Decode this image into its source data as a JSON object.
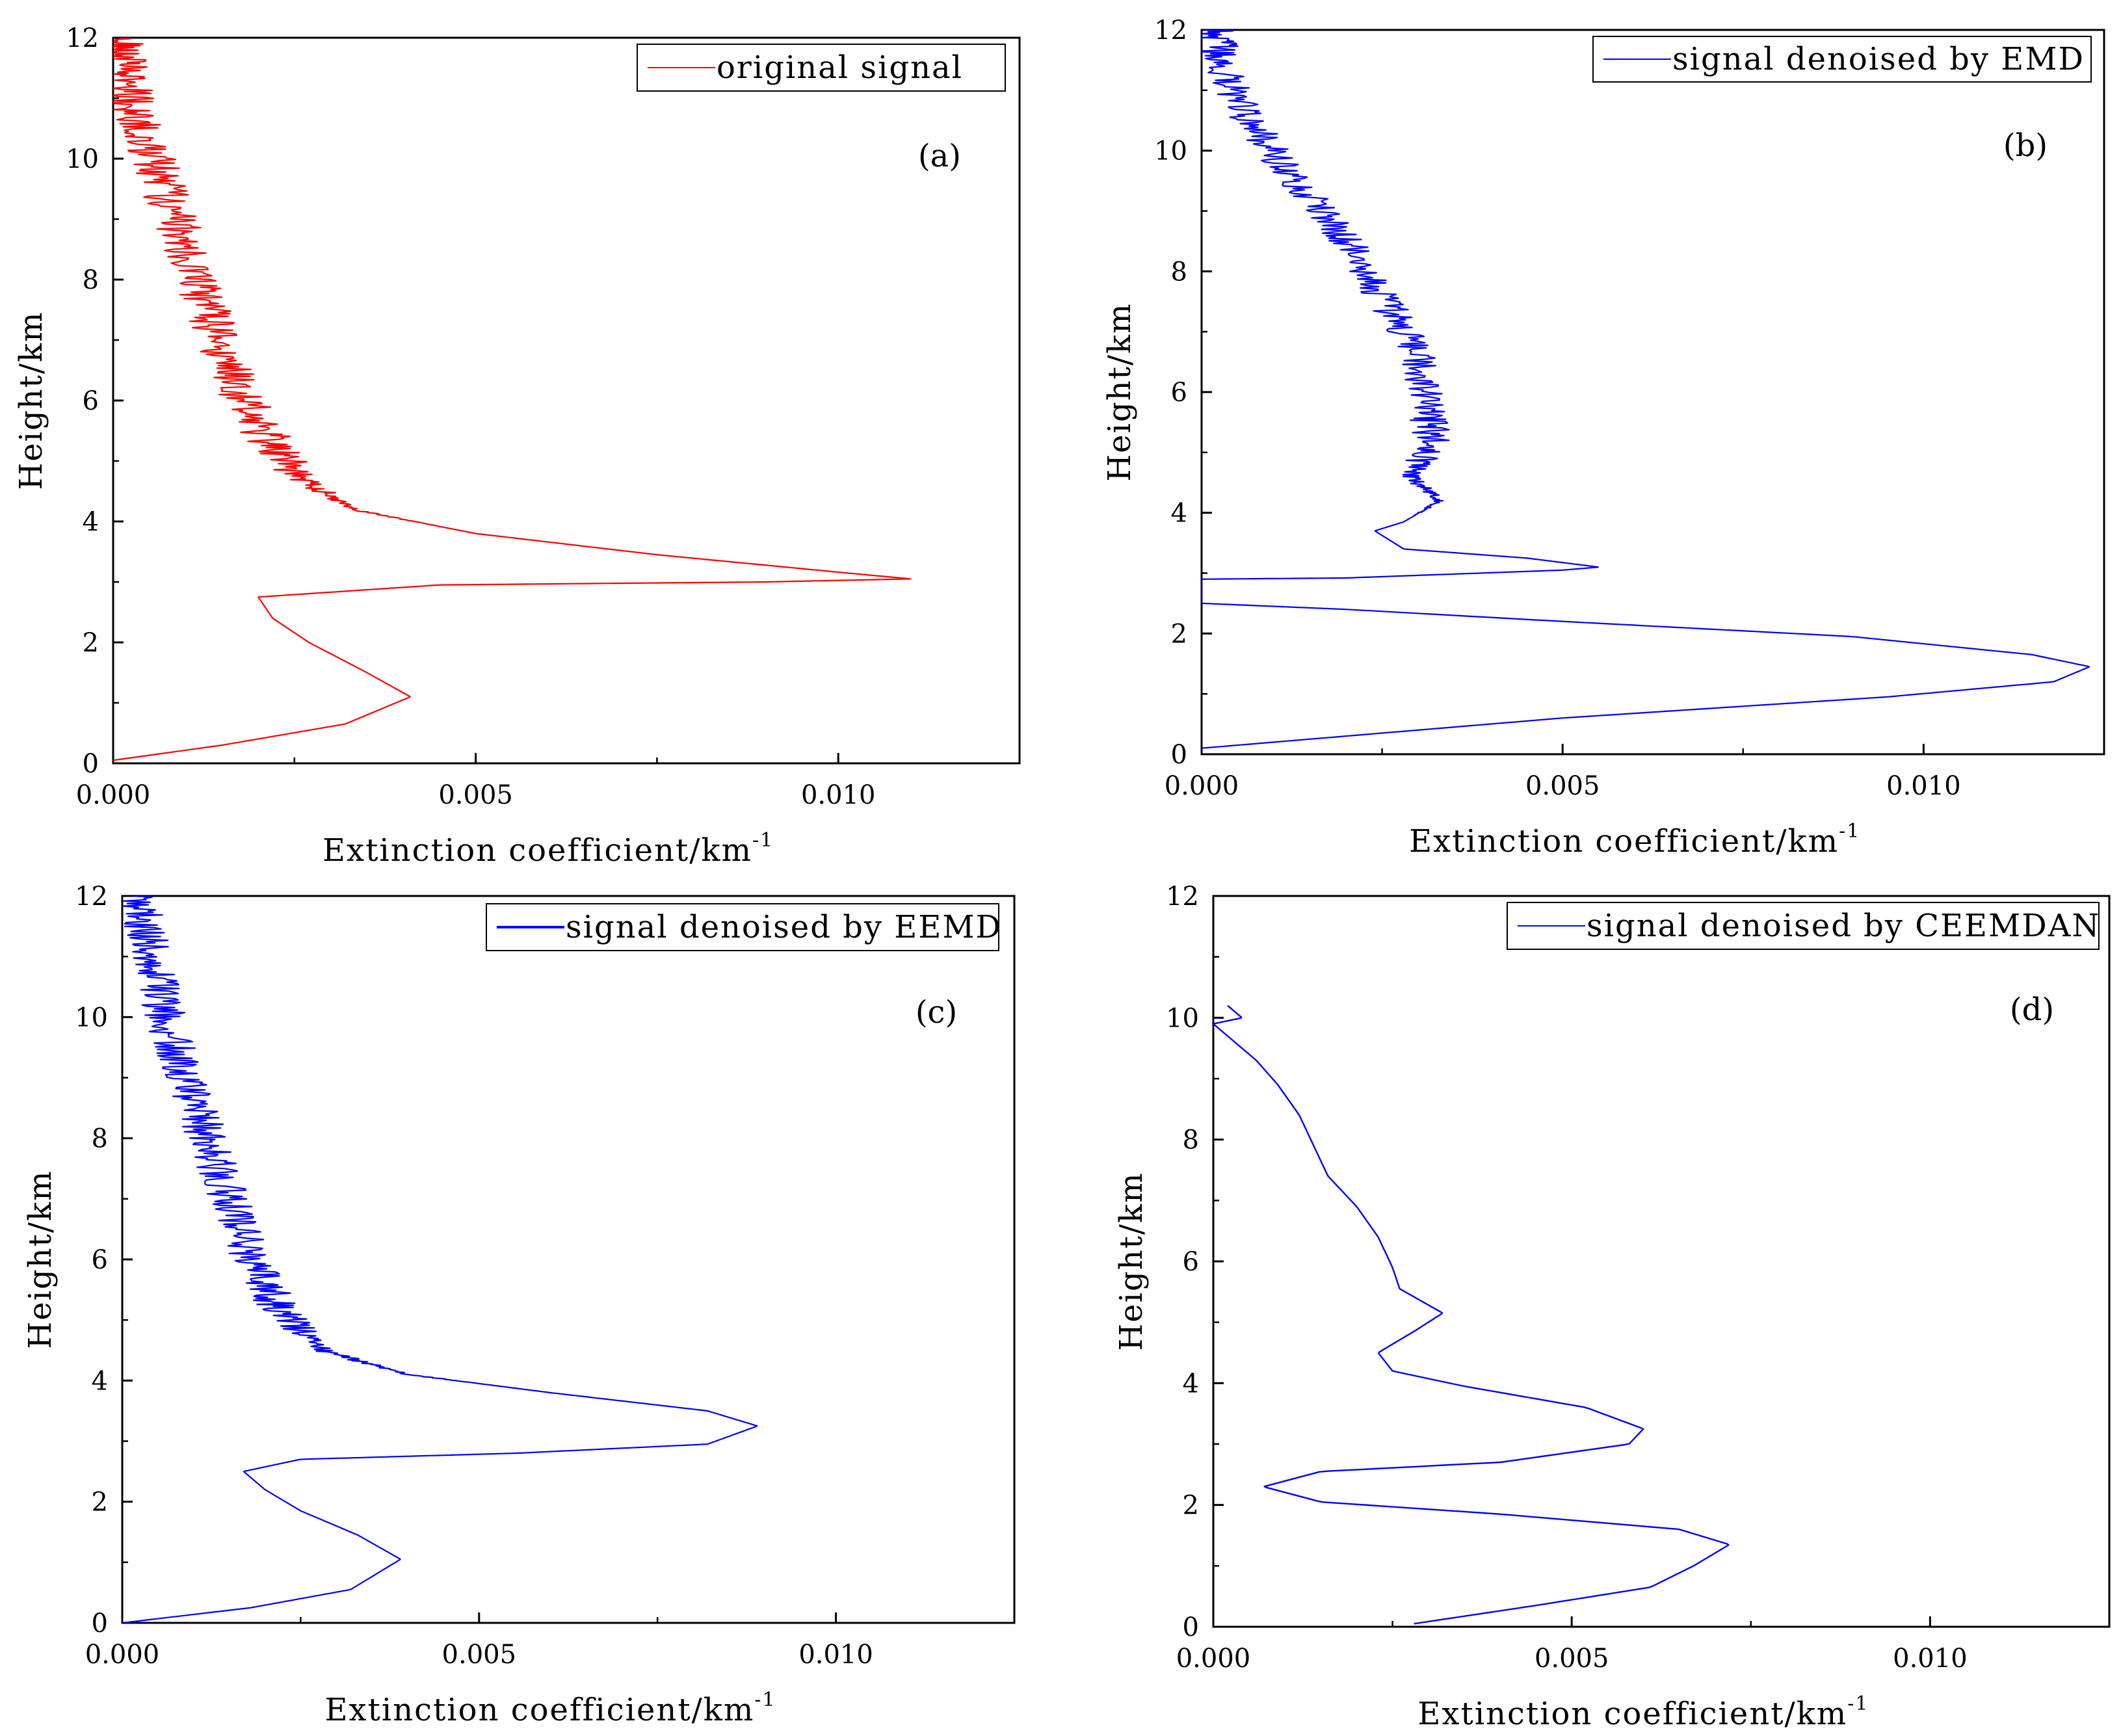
{
  "figure": {
    "colors": {
      "red": "#ff0000",
      "blue": "#0000ff",
      "axis": "#000000"
    }
  },
  "chart_data": [
    {
      "type": "line",
      "panel_label": "(a)",
      "legend": "original signal",
      "color": "#ff0000",
      "noisy": true,
      "noise_amplitude": 0.00032,
      "xlabel": "Extinction coefficient/km",
      "xlabel_superscript": "-1",
      "ylabel": "Height/km",
      "xlim": [
        0,
        0.0125
      ],
      "ylim": [
        0,
        12
      ],
      "xticks": [
        0,
        0.005,
        0.01
      ],
      "xtick_labels": [
        "0.000",
        "0.005",
        "0.010"
      ],
      "yticks": [
        0,
        2,
        4,
        6,
        8,
        10,
        12
      ],
      "ytick_labels": [
        "0",
        "2",
        "4",
        "6",
        "8",
        "10",
        "12"
      ],
      "series": [
        {
          "name": "original signal",
          "points": [
            [
              0.0,
              0.05
            ],
            [
              0.0015,
              0.3
            ],
            [
              0.0032,
              0.65
            ],
            [
              0.0041,
              1.1
            ],
            [
              0.0035,
              1.5
            ],
            [
              0.0027,
              2.0
            ],
            [
              0.0022,
              2.4
            ],
            [
              0.002,
              2.75
            ],
            [
              0.0045,
              2.95
            ],
            [
              0.009,
              3.0
            ],
            [
              0.011,
              3.05
            ],
            [
              0.0101,
              3.15
            ],
            [
              0.0075,
              3.45
            ],
            [
              0.005,
              3.8
            ],
            [
              0.0033,
              4.2
            ],
            [
              0.0025,
              4.8
            ],
            [
              0.002,
              5.6
            ],
            [
              0.0016,
              6.5
            ],
            [
              0.0013,
              7.5
            ],
            [
              0.001,
              8.5
            ],
            [
              0.0007,
              9.5
            ],
            [
              0.0004,
              10.5
            ],
            [
              0.0002,
              11.3
            ],
            [
              0.0001,
              12.0
            ]
          ]
        }
      ]
    },
    {
      "type": "line",
      "panel_label": "(b)",
      "legend": "signal denoised by EMD",
      "color": "#0000ff",
      "noisy": true,
      "noise_amplitude": 0.00026,
      "xlabel": "Extinction coefficient/km",
      "xlabel_superscript": "-1",
      "ylabel": "Height/km",
      "xlim": [
        0,
        0.0125
      ],
      "ylim": [
        0,
        12
      ],
      "xticks": [
        0,
        0.005,
        0.01
      ],
      "xtick_labels": [
        "0.000",
        "0.005",
        "0.010"
      ],
      "yticks": [
        0,
        2,
        4,
        6,
        8,
        10,
        12
      ],
      "ytick_labels": [
        "0",
        "2",
        "4",
        "6",
        "8",
        "10",
        "12"
      ],
      "series": [
        {
          "name": "signal denoised by EMD",
          "points": [
            [
              0.0,
              0.1
            ],
            [
              0.005,
              0.6
            ],
            [
              0.0095,
              0.95
            ],
            [
              0.0118,
              1.2
            ],
            [
              0.0123,
              1.45
            ],
            [
              0.0115,
              1.65
            ],
            [
              0.009,
              1.95
            ],
            [
              0.005,
              2.2
            ],
            [
              0.002,
              2.4
            ],
            [
              0.0,
              2.5
            ],
            [
              0.0,
              2.9
            ],
            [
              0.002,
              2.92
            ],
            [
              0.005,
              3.05
            ],
            [
              0.0055,
              3.1
            ],
            [
              0.0045,
              3.25
            ],
            [
              0.0028,
              3.4
            ],
            [
              0.0024,
              3.7
            ],
            [
              0.0028,
              3.85
            ],
            [
              0.0033,
              4.2
            ],
            [
              0.0029,
              4.6
            ],
            [
              0.0032,
              5.2
            ],
            [
              0.0031,
              5.8
            ],
            [
              0.003,
              6.6
            ],
            [
              0.0026,
              7.4
            ],
            [
              0.0022,
              8.2
            ],
            [
              0.0017,
              9.0
            ],
            [
              0.0011,
              9.8
            ],
            [
              0.0006,
              10.6
            ],
            [
              0.0003,
              11.4
            ],
            [
              0.0002,
              12.0
            ]
          ]
        }
      ]
    },
    {
      "type": "line",
      "panel_label": "(c)",
      "legend": "signal denoised by EEMD",
      "color": "#0000ff",
      "noisy": true,
      "noise_amplitude": 0.0003,
      "xlabel": "Extinction coefficient/km",
      "xlabel_superscript": "-1",
      "ylabel": "Height/km",
      "xlim": [
        0,
        0.0125
      ],
      "ylim": [
        0,
        12
      ],
      "xticks": [
        0,
        0.005,
        0.01
      ],
      "xtick_labels": [
        "0.000",
        "0.005",
        "0.010"
      ],
      "yticks": [
        0,
        2,
        4,
        6,
        8,
        10,
        12
      ],
      "ytick_labels": [
        "0",
        "2",
        "4",
        "6",
        "8",
        "10",
        "12"
      ],
      "series": [
        {
          "name": "signal denoised by EEMD",
          "points": [
            [
              0.0,
              0.0
            ],
            [
              0.0018,
              0.25
            ],
            [
              0.0032,
              0.55
            ],
            [
              0.0039,
              1.05
            ],
            [
              0.0033,
              1.45
            ],
            [
              0.0025,
              1.85
            ],
            [
              0.002,
              2.2
            ],
            [
              0.0017,
              2.5
            ],
            [
              0.0025,
              2.7
            ],
            [
              0.0055,
              2.8
            ],
            [
              0.0082,
              2.95
            ],
            [
              0.0089,
              3.25
            ],
            [
              0.0082,
              3.5
            ],
            [
              0.006,
              3.8
            ],
            [
              0.004,
              4.1
            ],
            [
              0.0028,
              4.5
            ],
            [
              0.0022,
              5.2
            ],
            [
              0.0018,
              6.0
            ],
            [
              0.0015,
              7.0
            ],
            [
              0.0012,
              8.0
            ],
            [
              0.0009,
              9.0
            ],
            [
              0.0006,
              10.0
            ],
            [
              0.0004,
              11.0
            ],
            [
              0.0002,
              12.0
            ]
          ]
        }
      ]
    },
    {
      "type": "line",
      "panel_label": "(d)",
      "legend": "signal denoised by CEEMDAN",
      "color": "#0000ff",
      "noisy": false,
      "noise_amplitude": 0,
      "xlabel": "Extinction coefficient/km",
      "xlabel_superscript": "-1",
      "ylabel": "Height/km",
      "xlim": [
        0,
        0.0125
      ],
      "ylim": [
        0,
        12
      ],
      "xticks": [
        0,
        0.005,
        0.01
      ],
      "xtick_labels": [
        "0.000",
        "0.005",
        "0.010"
      ],
      "yticks": [
        0,
        2,
        4,
        6,
        8,
        10,
        12
      ],
      "ytick_labels": [
        "0",
        "2",
        "4",
        "6",
        "8",
        "10",
        "12"
      ],
      "series": [
        {
          "name": "signal denoised by CEEMDAN",
          "points": [
            [
              0.0028,
              0.05
            ],
            [
              0.0045,
              0.35
            ],
            [
              0.0061,
              0.65
            ],
            [
              0.0067,
              1.0
            ],
            [
              0.0072,
              1.35
            ],
            [
              0.0065,
              1.6
            ],
            [
              0.004,
              1.85
            ],
            [
              0.0015,
              2.05
            ],
            [
              0.0007,
              2.3
            ],
            [
              0.0015,
              2.55
            ],
            [
              0.004,
              2.7
            ],
            [
              0.0058,
              3.0
            ],
            [
              0.006,
              3.25
            ],
            [
              0.0052,
              3.6
            ],
            [
              0.0035,
              3.95
            ],
            [
              0.0025,
              4.2
            ],
            [
              0.0023,
              4.5
            ],
            [
              0.0028,
              4.85
            ],
            [
              0.0032,
              5.15
            ],
            [
              0.0029,
              5.35
            ],
            [
              0.0026,
              5.55
            ],
            [
              0.0025,
              5.9
            ],
            [
              0.0023,
              6.4
            ],
            [
              0.002,
              6.9
            ],
            [
              0.0016,
              7.4
            ],
            [
              0.0014,
              7.9
            ],
            [
              0.0012,
              8.4
            ],
            [
              0.0009,
              8.9
            ],
            [
              0.0006,
              9.3
            ],
            [
              0.0003,
              9.6
            ],
            [
              0.0,
              9.9
            ],
            [
              0.0004,
              10.0
            ],
            [
              0.0002,
              10.2
            ]
          ]
        }
      ]
    }
  ]
}
